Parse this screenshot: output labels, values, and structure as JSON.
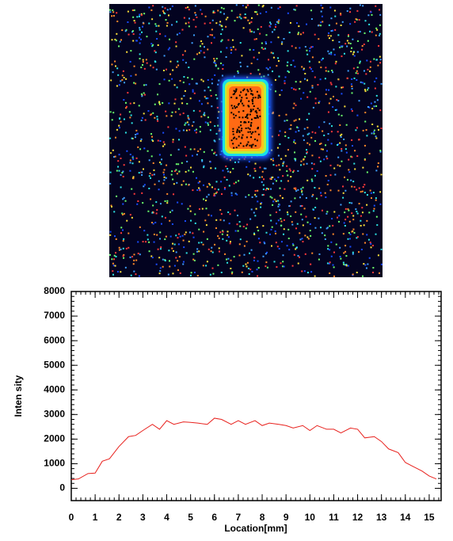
{
  "chart_data": {
    "type": "line",
    "y_label": "Inten sity",
    "x_label": "Location[mm]",
    "xlim": [
      0,
      15.5
    ],
    "ylim": [
      -500,
      8000
    ],
    "xticks": [
      0,
      1,
      2,
      3,
      4,
      5,
      6,
      7,
      8,
      9,
      10,
      11,
      12,
      13,
      14,
      15
    ],
    "yticks": [
      0,
      1000,
      2000,
      3000,
      4000,
      5000,
      6000,
      7000,
      8000
    ],
    "series": [
      {
        "color": "#e8211d",
        "x": [
          0,
          0.3,
          0.7,
          1,
          1.3,
          1.6,
          2,
          2.4,
          2.7,
          3,
          3.4,
          3.7,
          4,
          4.3,
          4.7,
          5,
          5.3,
          5.7,
          6,
          6.3,
          6.7,
          7,
          7.3,
          7.7,
          8,
          8.3,
          8.7,
          9,
          9.3,
          9.7,
          10,
          10.3,
          10.7,
          11,
          11.3,
          11.7,
          12,
          12.3,
          12.7,
          13,
          13.3,
          13.7,
          14,
          14.3,
          14.7,
          15,
          15.3
        ],
        "values": [
          350,
          380,
          600,
          620,
          1100,
          1200,
          1700,
          2100,
          2150,
          2350,
          2600,
          2400,
          2750,
          2600,
          2700,
          2680,
          2650,
          2600,
          2850,
          2800,
          2600,
          2750,
          2600,
          2750,
          2550,
          2650,
          2600,
          2550,
          2450,
          2550,
          2350,
          2550,
          2400,
          2400,
          2250,
          2450,
          2400,
          2050,
          2100,
          1900,
          1600,
          1450,
          1050,
          900,
          700,
          500,
          380
        ]
      }
    ]
  }
}
